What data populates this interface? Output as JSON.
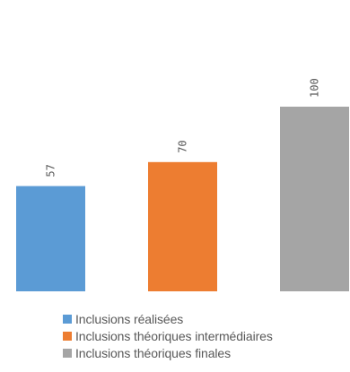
{
  "chart_data": {
    "type": "bar",
    "categories": [
      "Inclusions réalisées",
      "Inclusions théoriques intermédiaires",
      "Inclusions théoriques finales"
    ],
    "values": [
      57,
      70,
      100
    ],
    "data_labels": [
      "57",
      "70",
      "100"
    ],
    "colors": [
      "#5B9BD5",
      "#ED7D31",
      "#A5A5A5"
    ],
    "ylim": [
      0,
      110
    ],
    "grid": false,
    "legend_position": "bottom",
    "data_label_rotation": "vertical",
    "title": "",
    "xlabel": "",
    "ylabel": ""
  },
  "legend": {
    "items": [
      {
        "label": "Inclusions réalisées",
        "color": "#5B9BD5"
      },
      {
        "label": "Inclusions théoriques intermédiaires",
        "color": "#ED7D31"
      },
      {
        "label": "Inclusions théoriques finales",
        "color": "#A5A5A5"
      }
    ]
  },
  "label_color": "#595959"
}
